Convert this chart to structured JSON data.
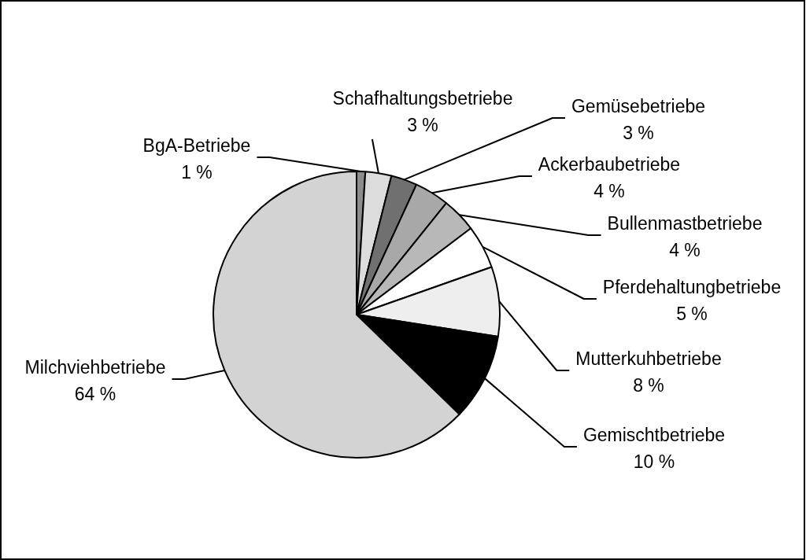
{
  "chart_data": {
    "type": "pie",
    "categories": [
      "BgA-Betriebe",
      "Schafhaltungsbetriebe",
      "Gemüsebetriebe",
      "Ackerbaubetriebe",
      "Bullenmastbetriebe",
      "Pferdehaltungbetriebe",
      "Mutterkuhbetriebe",
      "Gemischtbetriebe",
      "Milchviehbetriebe"
    ],
    "values": [
      1,
      3,
      3,
      4,
      4,
      5,
      8,
      10,
      64
    ],
    "value_labels": [
      "1 %",
      "3 %",
      "3 %",
      "4 %",
      "4 %",
      "5 %",
      "8 %",
      "10 %",
      "64 %"
    ],
    "colors": [
      "#8c8c8c",
      "#dcdcdc",
      "#707070",
      "#a8a8a8",
      "#b8b8b8",
      "#ffffff",
      "#eeeeee",
      "#000000",
      "#d3d3d3"
    ]
  }
}
